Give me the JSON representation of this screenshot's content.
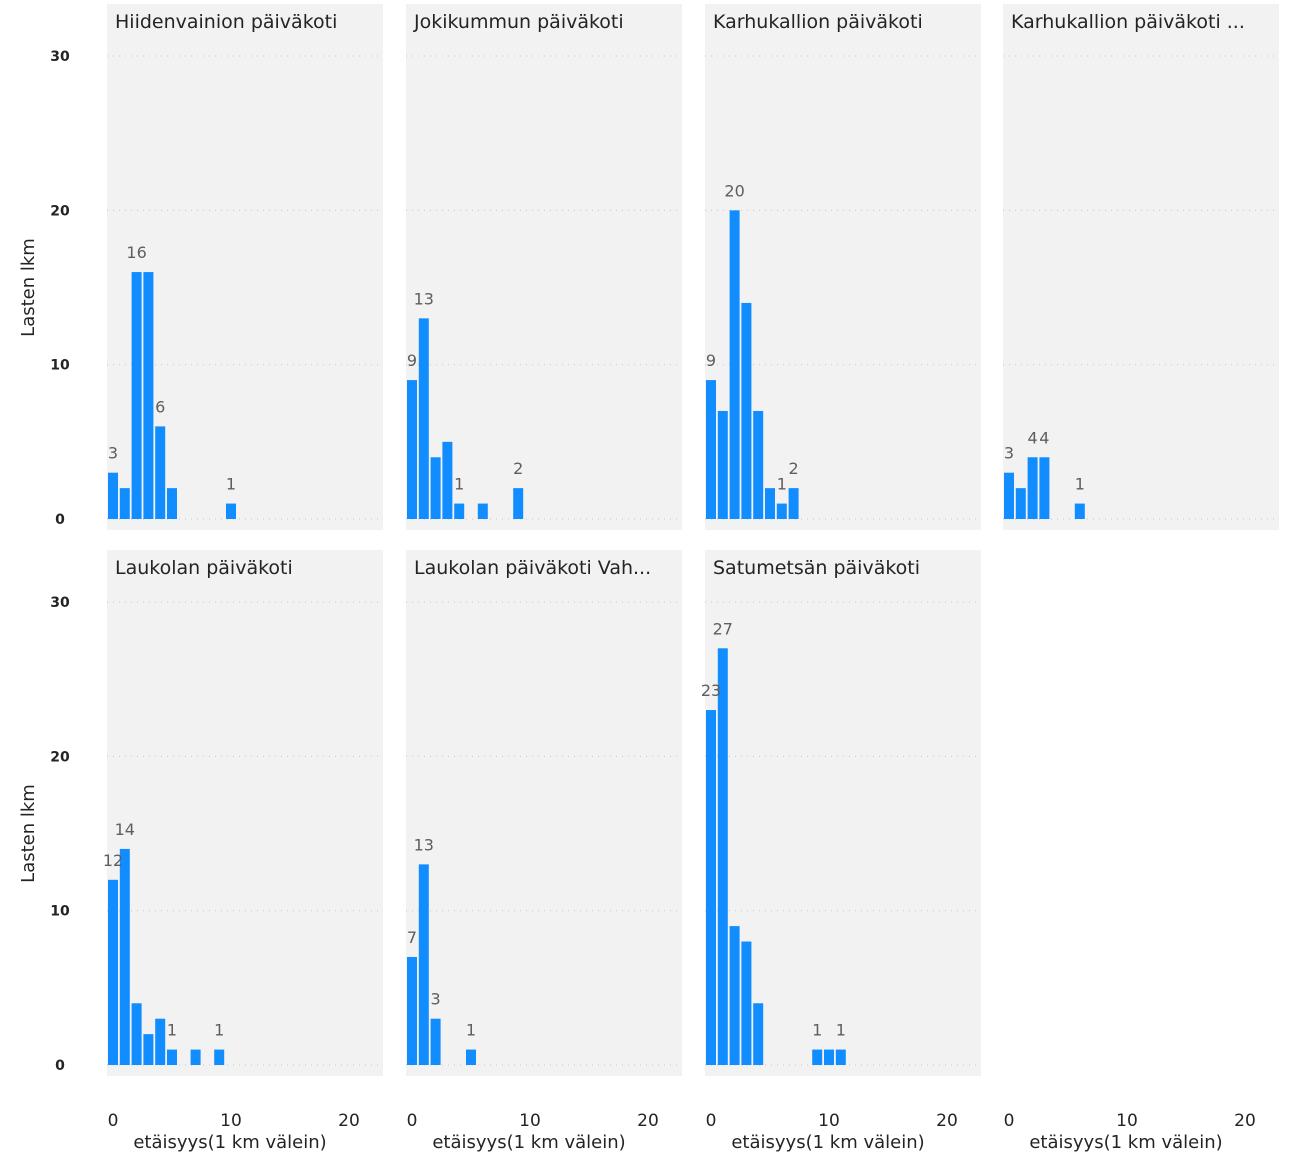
{
  "chart_data": {
    "type": "bar",
    "ylabel": "Lasten lkm",
    "xlabel": "etäisyys(1 km välein)",
    "ylim": [
      0,
      30
    ],
    "xlim": [
      0,
      22
    ],
    "y_ticks": [
      0,
      10,
      20,
      30
    ],
    "x_ticks": [
      0,
      10,
      20
    ],
    "grid": "horizontal dotted",
    "colors": {
      "bar": "#118DFF",
      "panel_bg": "#F2F2F2",
      "grid": "#C8C8C8"
    },
    "panels": [
      {
        "title": "Hiidenvainion päiväkoti",
        "bars": [
          {
            "x": 0,
            "y": 3
          },
          {
            "x": 1,
            "y": 2
          },
          {
            "x": 2,
            "y": 16
          },
          {
            "x": 3,
            "y": 16
          },
          {
            "x": 4,
            "y": 6
          },
          {
            "x": 5,
            "y": 2
          },
          {
            "x": 10,
            "y": 1
          }
        ],
        "labels": [
          {
            "x": 0,
            "y": 3
          },
          {
            "x": 2,
            "y": 16
          },
          {
            "x": 4,
            "y": 6
          },
          {
            "x": 10,
            "y": 1
          }
        ]
      },
      {
        "title": "Jokikummun päiväkoti",
        "bars": [
          {
            "x": 0,
            "y": 9
          },
          {
            "x": 1,
            "y": 13
          },
          {
            "x": 2,
            "y": 4
          },
          {
            "x": 3,
            "y": 5
          },
          {
            "x": 4,
            "y": 1
          },
          {
            "x": 6,
            "y": 1
          },
          {
            "x": 9,
            "y": 2
          }
        ],
        "labels": [
          {
            "x": 0,
            "y": 9
          },
          {
            "x": 1,
            "y": 13
          },
          {
            "x": 4,
            "y": 1
          },
          {
            "x": 9,
            "y": 2
          }
        ]
      },
      {
        "title": "Karhukallion päiväkoti",
        "bars": [
          {
            "x": 0,
            "y": 9
          },
          {
            "x": 1,
            "y": 7
          },
          {
            "x": 2,
            "y": 20
          },
          {
            "x": 3,
            "y": 14
          },
          {
            "x": 4,
            "y": 7
          },
          {
            "x": 5,
            "y": 2
          },
          {
            "x": 6,
            "y": 1
          },
          {
            "x": 7,
            "y": 2
          }
        ],
        "labels": [
          {
            "x": 0,
            "y": 9
          },
          {
            "x": 2,
            "y": 20
          },
          {
            "x": 6,
            "y": 1
          },
          {
            "x": 7,
            "y": 2
          }
        ]
      },
      {
        "title": "Karhukallion päiväkoti ...",
        "bars": [
          {
            "x": 0,
            "y": 3
          },
          {
            "x": 1,
            "y": 2
          },
          {
            "x": 2,
            "y": 4
          },
          {
            "x": 3,
            "y": 4
          },
          {
            "x": 6,
            "y": 1
          }
        ],
        "labels": [
          {
            "x": 0,
            "y": 3
          },
          {
            "x": 2,
            "y": 4
          },
          {
            "x": 3,
            "y": 4
          },
          {
            "x": 6,
            "y": 1
          }
        ]
      },
      {
        "title": "Laukolan päiväkoti",
        "bars": [
          {
            "x": 0,
            "y": 12
          },
          {
            "x": 1,
            "y": 14
          },
          {
            "x": 2,
            "y": 4
          },
          {
            "x": 3,
            "y": 2
          },
          {
            "x": 4,
            "y": 3
          },
          {
            "x": 5,
            "y": 1
          },
          {
            "x": 7,
            "y": 1
          },
          {
            "x": 9,
            "y": 1
          }
        ],
        "labels": [
          {
            "x": 0,
            "y": 12
          },
          {
            "x": 1,
            "y": 14
          },
          {
            "x": 5,
            "y": 1
          },
          {
            "x": 9,
            "y": 1
          }
        ]
      },
      {
        "title": "Laukolan päiväkoti Vah...",
        "bars": [
          {
            "x": 0,
            "y": 7
          },
          {
            "x": 1,
            "y": 13
          },
          {
            "x": 2,
            "y": 3
          },
          {
            "x": 5,
            "y": 1
          }
        ],
        "labels": [
          {
            "x": 0,
            "y": 7
          },
          {
            "x": 1,
            "y": 13
          },
          {
            "x": 2,
            "y": 3
          },
          {
            "x": 5,
            "y": 1
          }
        ]
      },
      {
        "title": "Satumetsän päiväkoti",
        "bars": [
          {
            "x": 0,
            "y": 23
          },
          {
            "x": 1,
            "y": 27
          },
          {
            "x": 2,
            "y": 9
          },
          {
            "x": 3,
            "y": 8
          },
          {
            "x": 4,
            "y": 4
          },
          {
            "x": 9,
            "y": 1
          },
          {
            "x": 10,
            "y": 1
          },
          {
            "x": 11,
            "y": 1
          }
        ],
        "labels": [
          {
            "x": 0,
            "y": 23
          },
          {
            "x": 1,
            "y": 27
          },
          {
            "x": 9,
            "y": 1
          },
          {
            "x": 11,
            "y": 1
          }
        ]
      }
    ]
  }
}
